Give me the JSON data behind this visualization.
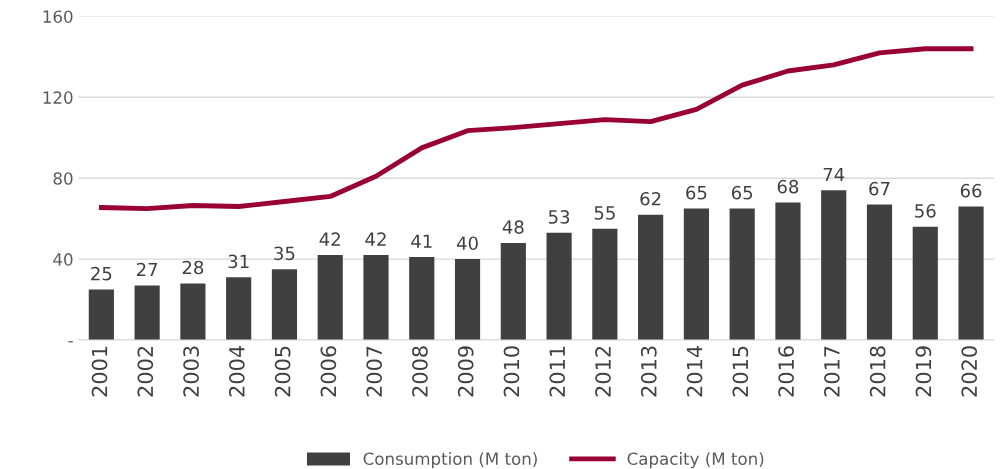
{
  "chart_data": {
    "type": "bar",
    "categories": [
      "2001",
      "2002",
      "2003",
      "2004",
      "2005",
      "2006",
      "2007",
      "2008",
      "2009",
      "2010",
      "2011",
      "2012",
      "2013",
      "2014",
      "2015",
      "2016",
      "2017",
      "2018",
      "2019",
      "2020"
    ],
    "series": [
      {
        "name": "Consumption (M ton)",
        "color": "#404040",
        "values": [
          25,
          27,
          28,
          31,
          35,
          42,
          42,
          41,
          40,
          48,
          53,
          55,
          62,
          65,
          65,
          68,
          74,
          67,
          56,
          66
        ],
        "value_labels": [
          "25",
          "27",
          "28",
          "31",
          "35",
          "42",
          "42",
          "41",
          "40",
          "48",
          "53",
          "55",
          "62",
          "65",
          "65",
          "68",
          "74",
          "67",
          "56",
          "66"
        ]
      },
      {
        "name": "Capacity (M ton)",
        "type": "line",
        "color": "#990033",
        "values": [
          65.5,
          65,
          66.5,
          66,
          68.5,
          71,
          81,
          95,
          103.5,
          105,
          107,
          109,
          108,
          114,
          126,
          133,
          136,
          142,
          144,
          144
        ]
      }
    ],
    "ylim": [
      0,
      160
    ],
    "yticks": [
      {
        "value": 0,
        "label": "-"
      },
      40,
      80,
      120,
      160
    ],
    "grid": "y",
    "legend": "bottom",
    "marker": "none",
    "line_style": "solid"
  }
}
